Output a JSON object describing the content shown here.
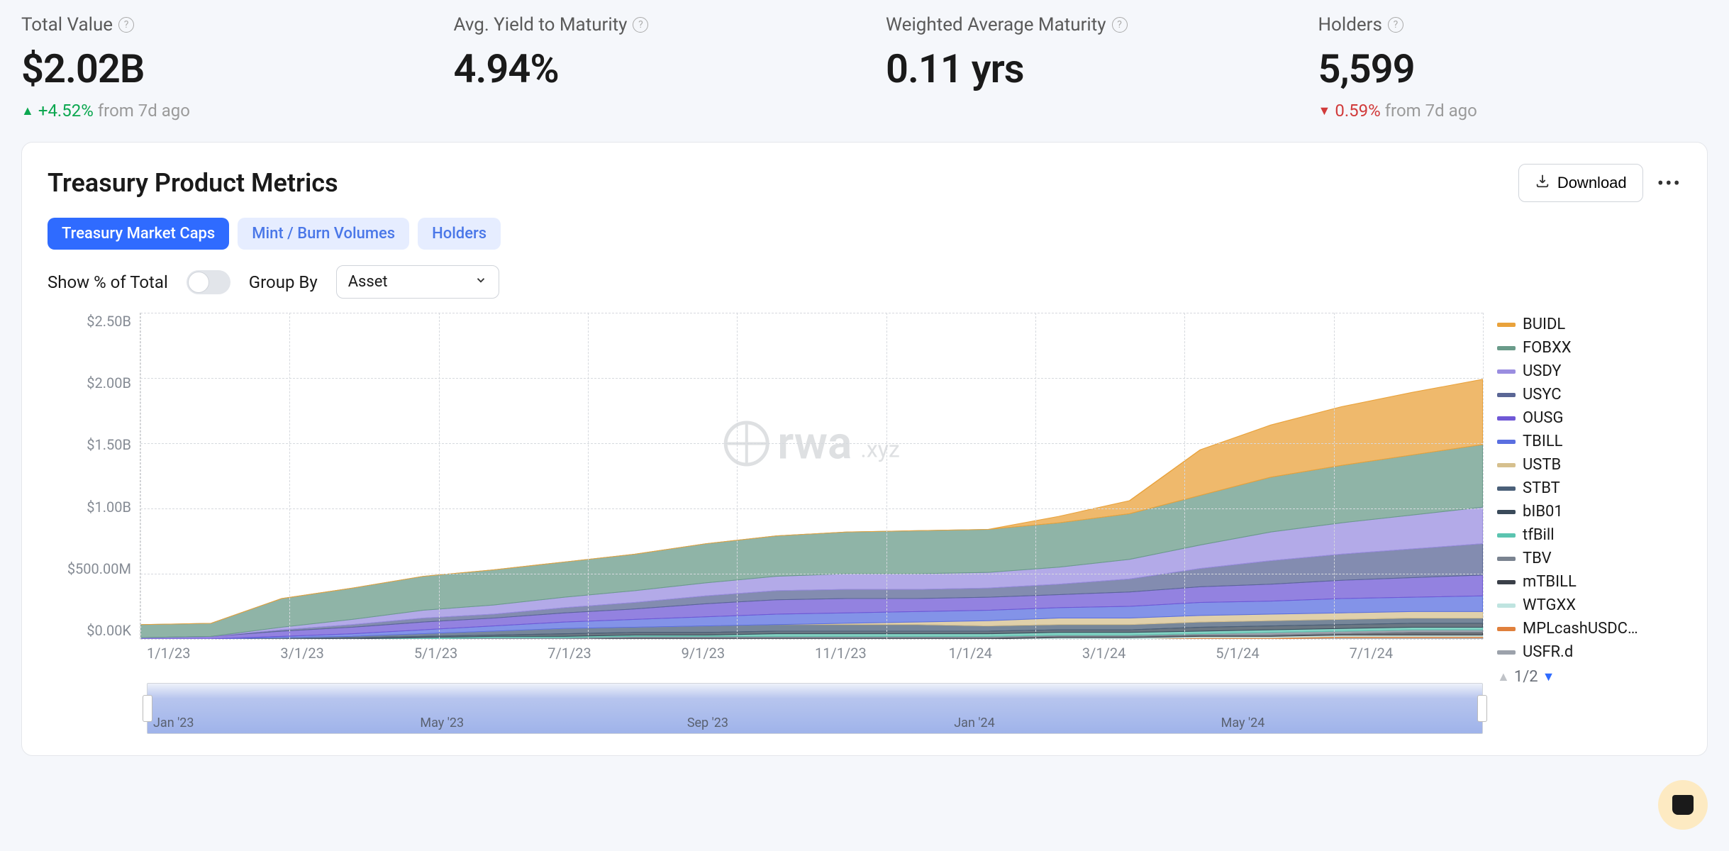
{
  "metrics": [
    {
      "label": "Total Value",
      "value": "$2.02B",
      "delta": "+4.52%",
      "delta_dir": "up",
      "delta_suffix": "from 7d ago"
    },
    {
      "label": "Avg. Yield to Maturity",
      "value": "4.94%"
    },
    {
      "label": "Weighted Average Maturity",
      "value": "0.11 yrs"
    },
    {
      "label": "Holders",
      "value": "5,599",
      "delta": "0.59%",
      "delta_dir": "down",
      "delta_suffix": "from 7d ago"
    }
  ],
  "panel": {
    "title": "Treasury Product Metrics",
    "download_label": "Download",
    "tabs": [
      "Treasury Market Caps",
      "Mint / Burn Volumes",
      "Holders"
    ],
    "active_tab_index": 0,
    "show_pct_label": "Show % of Total",
    "show_pct_on": false,
    "group_by_label": "Group By",
    "group_by_value": "Asset"
  },
  "chart": {
    "type": "stacked-area",
    "y_ticks": [
      "$2.50B",
      "$2.00B",
      "$1.50B",
      "$1.00B",
      "$500.00M",
      "$0.00K"
    ],
    "ylim_billions": [
      0,
      2.5
    ],
    "x_ticks": [
      "1/1/23",
      "3/1/23",
      "5/1/23",
      "7/1/23",
      "9/1/23",
      "11/1/23",
      "1/1/24",
      "3/1/24",
      "5/1/24",
      "7/1/24"
    ],
    "n_points": 20,
    "grid_color": "#d6d9de",
    "background": "#ffffff",
    "watermark_text": "rwa",
    "watermark_suffix": ".xyz",
    "series": [
      {
        "name": "BUIDL",
        "color": "#e9a23b",
        "values_b": [
          0,
          0,
          0,
          0,
          0,
          0,
          0,
          0,
          0,
          0,
          0,
          0,
          0,
          0.05,
          0.1,
          0.35,
          0.4,
          0.45,
          0.48,
          0.5
        ]
      },
      {
        "name": "FOBXX",
        "color": "#6a9b8a",
        "values_b": [
          0.1,
          0.1,
          0.22,
          0.24,
          0.26,
          0.27,
          0.27,
          0.28,
          0.3,
          0.31,
          0.32,
          0.33,
          0.33,
          0.34,
          0.35,
          0.38,
          0.42,
          0.44,
          0.46,
          0.48
        ]
      },
      {
        "name": "USDY",
        "color": "#9a8de0",
        "values_b": [
          0,
          0,
          0.02,
          0.04,
          0.06,
          0.07,
          0.08,
          0.09,
          0.1,
          0.11,
          0.12,
          0.12,
          0.12,
          0.13,
          0.15,
          0.18,
          0.22,
          0.24,
          0.26,
          0.28
        ]
      },
      {
        "name": "USYC",
        "color": "#5a6695",
        "values_b": [
          0,
          0,
          0.01,
          0.02,
          0.03,
          0.03,
          0.04,
          0.05,
          0.06,
          0.07,
          0.07,
          0.07,
          0.07,
          0.08,
          0.1,
          0.14,
          0.18,
          0.2,
          0.22,
          0.24
        ]
      },
      {
        "name": "OUSG",
        "color": "#6f58d6",
        "values_b": [
          0.01,
          0.02,
          0.04,
          0.05,
          0.06,
          0.06,
          0.07,
          0.08,
          0.1,
          0.11,
          0.11,
          0.1,
          0.1,
          0.1,
          0.11,
          0.12,
          0.13,
          0.14,
          0.15,
          0.16
        ]
      },
      {
        "name": "TBILL",
        "color": "#5a6fe0",
        "values_b": [
          0,
          0,
          0.01,
          0.02,
          0.03,
          0.04,
          0.05,
          0.06,
          0.07,
          0.08,
          0.08,
          0.08,
          0.08,
          0.08,
          0.09,
          0.1,
          0.1,
          0.11,
          0.11,
          0.12
        ]
      },
      {
        "name": "USTB",
        "color": "#d6c08e",
        "values_b": [
          0,
          0,
          0,
          0,
          0,
          0,
          0,
          0,
          0,
          0,
          0.01,
          0.02,
          0.04,
          0.05,
          0.05,
          0.05,
          0.05,
          0.05,
          0.05,
          0.05
        ]
      },
      {
        "name": "STBT",
        "color": "#4a5f78",
        "values_b": [
          0,
          0,
          0.01,
          0.01,
          0.02,
          0.03,
          0.04,
          0.04,
          0.05,
          0.05,
          0.05,
          0.05,
          0.04,
          0.04,
          0.04,
          0.04,
          0.04,
          0.04,
          0.04,
          0.04
        ]
      },
      {
        "name": "bIB01",
        "color": "#3a4a5a",
        "values_b": [
          0,
          0,
          0,
          0.01,
          0.01,
          0.01,
          0.02,
          0.02,
          0.02,
          0.02,
          0.02,
          0.02,
          0.02,
          0.02,
          0.02,
          0.03,
          0.03,
          0.03,
          0.03,
          0.03
        ]
      },
      {
        "name": "tfBill",
        "color": "#5bc4b0",
        "values_b": [
          0,
          0,
          0,
          0,
          0.01,
          0.01,
          0.01,
          0.01,
          0.01,
          0.02,
          0.02,
          0.02,
          0.02,
          0.02,
          0.02,
          0.02,
          0.02,
          0.02,
          0.02,
          0.02
        ]
      },
      {
        "name": "TBV",
        "color": "#7a8390",
        "values_b": [
          0,
          0,
          0,
          0,
          0,
          0.01,
          0.01,
          0.01,
          0.01,
          0.01,
          0.01,
          0.01,
          0.01,
          0.01,
          0.01,
          0.01,
          0.02,
          0.02,
          0.02,
          0.02
        ]
      },
      {
        "name": "mTBILL",
        "color": "#3a3f48",
        "values_b": [
          0,
          0,
          0,
          0,
          0,
          0,
          0,
          0.01,
          0.01,
          0.01,
          0.01,
          0.01,
          0.01,
          0.01,
          0.01,
          0.01,
          0.01,
          0.01,
          0.02,
          0.02
        ]
      },
      {
        "name": "WTGXX",
        "color": "#bfe4e0",
        "values_b": [
          0,
          0,
          0,
          0,
          0,
          0,
          0,
          0,
          0,
          0,
          0,
          0,
          0,
          0.01,
          0.01,
          0.01,
          0.01,
          0.01,
          0.01,
          0.01
        ]
      },
      {
        "name": "MPLcashUSDC…",
        "color": "#e0803c",
        "values_b": [
          0,
          0,
          0,
          0,
          0,
          0,
          0,
          0,
          0,
          0,
          0,
          0,
          0,
          0,
          0,
          0.01,
          0.01,
          0.01,
          0.01,
          0.01
        ]
      },
      {
        "name": "USFR.d",
        "color": "#9ca2ab",
        "values_b": [
          0,
          0,
          0,
          0,
          0,
          0,
          0,
          0,
          0,
          0,
          0,
          0,
          0,
          0,
          0,
          0,
          0,
          0.01,
          0.01,
          0.01
        ]
      }
    ],
    "brush_labels": [
      "Jan '23",
      "May '23",
      "Sep '23",
      "Jan '24",
      "May '24"
    ],
    "legend_pager": "1/2"
  }
}
